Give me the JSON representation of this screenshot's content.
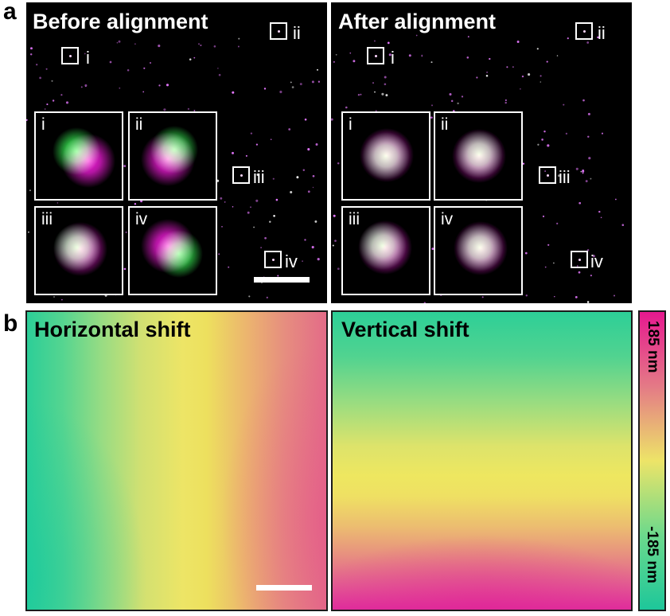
{
  "panel_a": {
    "letter": "a",
    "before": {
      "title": "Before alignment",
      "regions": [
        "i",
        "ii",
        "iii",
        "iv"
      ],
      "insets": [
        "i",
        "ii",
        "iii",
        "iv"
      ]
    },
    "after": {
      "title": "After alignment",
      "regions": [
        "i",
        "ii",
        "iii",
        "iv"
      ],
      "insets": [
        "i",
        "ii",
        "iii",
        "iv"
      ]
    }
  },
  "panel_b": {
    "letter": "b",
    "horizontal_title": "Horizontal shift",
    "vertical_title": "Vertical shift",
    "colorbar": {
      "max_label": "185 nm",
      "min_label": "-185 nm",
      "colors": [
        "#e6198f",
        "#e47a86",
        "#ede468",
        "#6cd98c",
        "#1dc79a"
      ]
    }
  },
  "colors": {
    "green_channel": "#3cff5a",
    "magenta_channel": "#ff1ee6",
    "overlap": "#ffffff"
  }
}
